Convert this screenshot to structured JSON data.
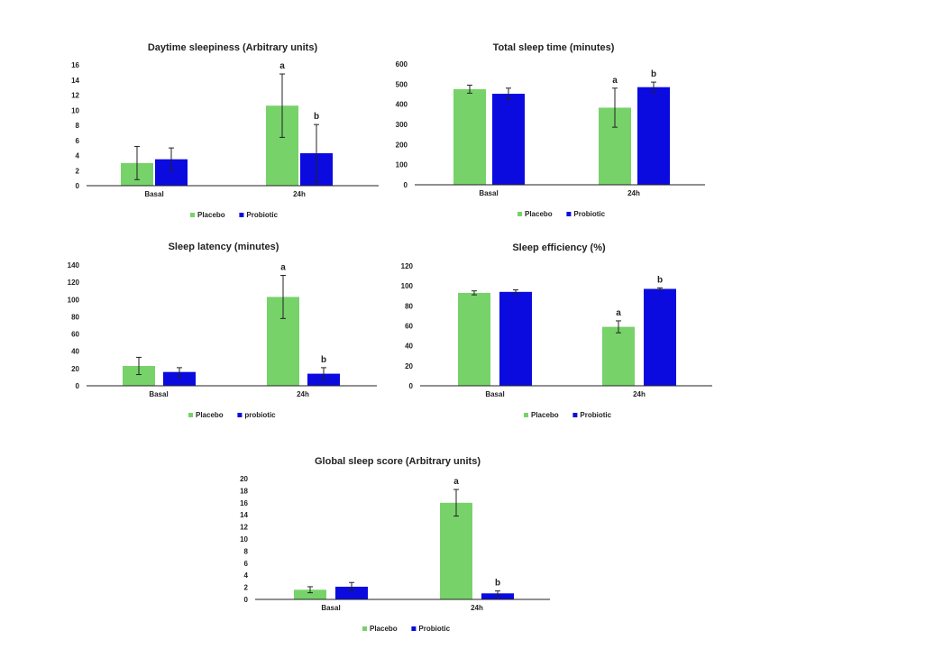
{
  "chart_data": [
    {
      "type": "bar",
      "title": "Daytime sleepiness (Arbitrary units)",
      "categories": [
        "Basal",
        "24h"
      ],
      "series": [
        {
          "name": "Placebo",
          "values": [
            3.0,
            10.6
          ],
          "errors": [
            2.2,
            4.2
          ],
          "annotations": [
            "",
            "a"
          ]
        },
        {
          "name": "Probiotic",
          "values": [
            3.5,
            4.3
          ],
          "errors": [
            1.5,
            3.8
          ],
          "annotations": [
            "",
            "b"
          ]
        }
      ],
      "ylim": [
        0,
        16
      ],
      "yticks": [
        0,
        2,
        4,
        6,
        8,
        10,
        12,
        14,
        16
      ],
      "xlabel": "",
      "ylabel": "",
      "legend": "bottom"
    },
    {
      "type": "bar",
      "title": "Total sleep time (minutes)",
      "categories": [
        "Basal",
        "24h"
      ],
      "series": [
        {
          "name": "Placebo",
          "values": [
            475,
            383
          ],
          "errors": [
            20,
            97
          ],
          "annotations": [
            "",
            "a"
          ]
        },
        {
          "name": "Probiotic",
          "values": [
            452,
            485
          ],
          "errors": [
            28,
            25
          ],
          "annotations": [
            "",
            "b"
          ]
        }
      ],
      "ylim": [
        0,
        600
      ],
      "yticks": [
        0,
        100,
        200,
        300,
        400,
        500,
        600
      ],
      "xlabel": "",
      "ylabel": "",
      "legend": "bottom"
    },
    {
      "type": "bar",
      "title": "Sleep latency (minutes)",
      "categories": [
        "Basal",
        "24h"
      ],
      "series": [
        {
          "name": "Placebo",
          "values": [
            23,
            103
          ],
          "errors": [
            10,
            25
          ],
          "annotations": [
            "",
            "a"
          ]
        },
        {
          "name": "probiotic",
          "values": [
            16,
            14
          ],
          "errors": [
            5,
            7
          ],
          "annotations": [
            "",
            "b"
          ]
        }
      ],
      "ylim": [
        0,
        140
      ],
      "yticks": [
        0,
        20,
        40,
        60,
        80,
        100,
        120,
        140
      ],
      "xlabel": "",
      "ylabel": "",
      "legend": "bottom"
    },
    {
      "type": "bar",
      "title": "Sleep efficiency (%)",
      "categories": [
        "Basal",
        "24h"
      ],
      "series": [
        {
          "name": "Placebo",
          "values": [
            93,
            59
          ],
          "errors": [
            2,
            6
          ],
          "annotations": [
            "",
            "a"
          ]
        },
        {
          "name": "Probiotic",
          "values": [
            94,
            97
          ],
          "errors": [
            2,
            1
          ],
          "annotations": [
            "",
            "b"
          ]
        }
      ],
      "ylim": [
        0,
        120
      ],
      "yticks": [
        0,
        20,
        40,
        60,
        80,
        100,
        120
      ],
      "xlabel": "",
      "ylabel": "",
      "legend": "bottom"
    },
    {
      "type": "bar",
      "title": "Global sleep score (Arbitrary units)",
      "categories": [
        "Basal",
        "24h"
      ],
      "series": [
        {
          "name": "Placebo",
          "values": [
            1.6,
            16.0
          ],
          "errors": [
            0.5,
            2.2
          ],
          "annotations": [
            "",
            "a"
          ]
        },
        {
          "name": "Probiotic",
          "values": [
            2.1,
            1.0
          ],
          "errors": [
            0.7,
            0.4
          ],
          "annotations": [
            "",
            "b"
          ]
        }
      ],
      "ylim": [
        0,
        20
      ],
      "yticks": [
        0,
        2,
        4,
        6,
        8,
        10,
        12,
        14,
        16,
        18,
        20
      ],
      "xlabel": "",
      "ylabel": "",
      "legend": "bottom"
    }
  ],
  "colors": {
    "placebo": "#77d26a",
    "probiotic": "#0b0be0"
  }
}
